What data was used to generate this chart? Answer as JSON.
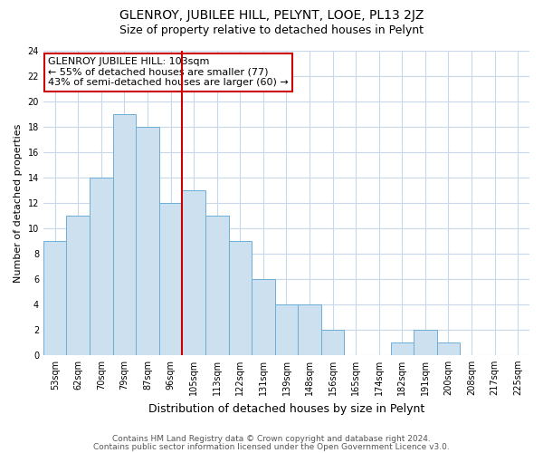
{
  "title": "GLENROY, JUBILEE HILL, PELYNT, LOOE, PL13 2JZ",
  "subtitle": "Size of property relative to detached houses in Pelynt",
  "xlabel": "Distribution of detached houses by size in Pelynt",
  "ylabel": "Number of detached properties",
  "bar_labels": [
    "53sqm",
    "62sqm",
    "70sqm",
    "79sqm",
    "87sqm",
    "96sqm",
    "105sqm",
    "113sqm",
    "122sqm",
    "131sqm",
    "139sqm",
    "148sqm",
    "156sqm",
    "165sqm",
    "174sqm",
    "182sqm",
    "191sqm",
    "200sqm",
    "208sqm",
    "217sqm",
    "225sqm"
  ],
  "bar_values": [
    9,
    11,
    14,
    19,
    18,
    12,
    13,
    11,
    9,
    6,
    4,
    4,
    2,
    0,
    0,
    1,
    2,
    1,
    0,
    0,
    0
  ],
  "bar_color": "#cce0f0",
  "bar_edge_color": "#6baed6",
  "vline_x_index": 6,
  "vline_color": "#cc0000",
  "annotation_title": "GLENROY JUBILEE HILL: 103sqm",
  "annotation_line1": "← 55% of detached houses are smaller (77)",
  "annotation_line2": "43% of semi-detached houses are larger (60) →",
  "annotation_box_color": "#ffffff",
  "annotation_box_edge": "#cc0000",
  "ylim": [
    0,
    24
  ],
  "yticks": [
    0,
    2,
    4,
    6,
    8,
    10,
    12,
    14,
    16,
    18,
    20,
    22,
    24
  ],
  "footer1": "Contains HM Land Registry data © Crown copyright and database right 2024.",
  "footer2": "Contains public sector information licensed under the Open Government Licence v3.0.",
  "bg_color": "#ffffff",
  "grid_color": "#c8d8e8",
  "title_fontsize": 10,
  "subtitle_fontsize": 9,
  "xlabel_fontsize": 9,
  "ylabel_fontsize": 8,
  "tick_fontsize": 7,
  "annotation_fontsize": 8,
  "footer_fontsize": 6.5
}
